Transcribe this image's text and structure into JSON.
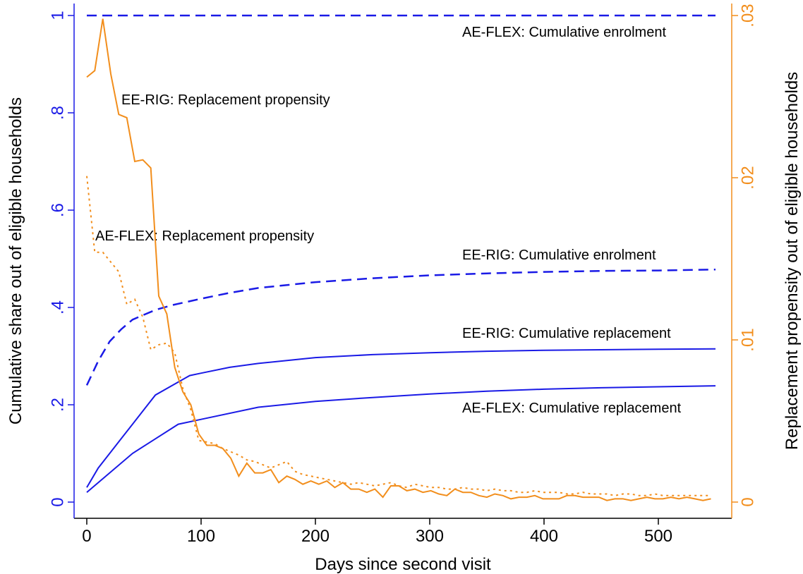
{
  "chart_data": {
    "type": "line",
    "xlabel": "Days since second visit",
    "ylabel": "Cumulative share out of eligible households",
    "y2label": "Replacement propensity out of eligible households",
    "xlim": [
      -11.1,
      564.2
    ],
    "ylim": [
      -0.0333,
      1.0246
    ],
    "y2lim": [
      -0.001,
      0.03074
    ],
    "xticks": [
      0,
      100,
      200,
      300,
      400,
      500
    ],
    "yticks": [
      0,
      {
        "value": 0.2,
        "label": ".2"
      },
      {
        "value": 0.4,
        "label": ".4"
      },
      {
        "value": 0.6,
        "label": ".6"
      },
      {
        "value": 0.8,
        "label": ".8"
      },
      1
    ],
    "y2ticks": [
      0,
      {
        "value": 0.01,
        "label": ".01"
      },
      {
        "value": 0.02,
        "label": ".02"
      },
      {
        "value": 0.03,
        "label": ".03"
      }
    ],
    "yaxis_color": "#1a1ae6",
    "y2axis_color": "#f28e1c",
    "annotations": [
      "AE-FLEX: Cumulative enrolment",
      "EE-RIG: Replacement propensity",
      "AE-FLEX: Replacement propensity",
      "EE-RIG: Cumulative enrolment",
      "EE-RIG: Cumulative replacement",
      "AE-FLEX: Cumulative replacement"
    ],
    "series": [
      {
        "color": "#1a1ae6",
        "style": "dash",
        "x": [
          0,
          550
        ],
        "values": [
          1,
          1
        ]
      },
      {
        "color": "#1a1ae6",
        "style": "dash",
        "x": [
          0,
          10,
          20,
          30,
          40,
          50,
          60,
          75,
          100,
          125,
          150,
          200,
          250,
          300,
          350,
          400,
          450,
          500,
          550
        ],
        "values": [
          0.24,
          0.29,
          0.33,
          0.355,
          0.375,
          0.385,
          0.395,
          0.405,
          0.418,
          0.43,
          0.44,
          0.452,
          0.46,
          0.466,
          0.47,
          0.473,
          0.475,
          0.476,
          0.478
        ]
      },
      {
        "color": "#1a1ae6",
        "style": "solid",
        "x": [
          0,
          10,
          20,
          30,
          40,
          50,
          60,
          75,
          90,
          100,
          125,
          150,
          200,
          250,
          300,
          350,
          400,
          450,
          500,
          550
        ],
        "values": [
          0.03,
          0.07,
          0.1,
          0.13,
          0.16,
          0.19,
          0.22,
          0.24,
          0.26,
          0.265,
          0.277,
          0.285,
          0.297,
          0.303,
          0.307,
          0.31,
          0.312,
          0.313,
          0.314,
          0.315
        ]
      },
      {
        "color": "#1a1ae6",
        "style": "solid",
        "x": [
          0,
          20,
          40,
          60,
          80,
          100,
          150,
          200,
          250,
          300,
          350,
          400,
          450,
          500,
          550
        ],
        "values": [
          0.02,
          0.06,
          0.1,
          0.13,
          0.16,
          0.17,
          0.195,
          0.207,
          0.215,
          0.222,
          0.228,
          0.232,
          0.235,
          0.237,
          0.239
        ]
      },
      {
        "color": "#f28e1c",
        "style": "solid",
        "axis": "y2",
        "x": [
          0,
          7,
          14,
          21,
          28,
          35,
          42,
          49,
          56,
          63,
          70,
          77,
          84,
          91,
          98,
          105,
          112,
          119,
          126,
          133,
          140,
          147,
          154,
          161,
          168,
          175,
          182,
          189,
          196,
          203,
          210,
          217,
          224,
          231,
          238,
          245,
          252,
          259,
          266,
          273,
          280,
          287,
          294,
          301,
          308,
          315,
          322,
          329,
          336,
          343,
          350,
          357,
          364,
          371,
          378,
          385,
          392,
          399,
          406,
          413,
          420,
          427,
          434,
          441,
          448,
          455,
          462,
          469,
          476,
          483,
          490,
          497,
          504,
          511,
          518,
          525,
          532,
          539,
          546
        ],
        "values": [
          0.0262,
          0.0266,
          0.0298,
          0.0264,
          0.0239,
          0.0237,
          0.021,
          0.0211,
          0.0206,
          0.0127,
          0.0116,
          0.0083,
          0.0068,
          0.006,
          0.0042,
          0.0035,
          0.0035,
          0.0033,
          0.0027,
          0.0016,
          0.0024,
          0.0018,
          0.0018,
          0.002,
          0.0012,
          0.0016,
          0.0014,
          0.0011,
          0.0013,
          0.0011,
          0.0013,
          0.0009,
          0.0012,
          0.0008,
          0.0008,
          0.0006,
          0.0008,
          0.0003,
          0.001,
          0.001,
          0.0007,
          0.0008,
          0.0006,
          0.0007,
          0.0005,
          0.0004,
          0.0008,
          0.0006,
          0.0006,
          0.0004,
          0.0003,
          0.0005,
          0.0004,
          0.0002,
          0.0003,
          0.0003,
          0.0004,
          0.0002,
          0.0002,
          0.0002,
          0.0004,
          0.0004,
          0.0003,
          0.0003,
          0.0003,
          0.0001,
          0.0002,
          0.0002,
          0.0001,
          0.0002,
          0.0003,
          0.0002,
          0.0002,
          0.0003,
          0.0002,
          0.0003,
          0.0002,
          0.0001,
          0.0002
        ]
      },
      {
        "color": "#f28e1c",
        "style": "dot",
        "axis": "y2",
        "x": [
          0,
          7,
          14,
          21,
          28,
          35,
          42,
          49,
          56,
          63,
          70,
          77,
          84,
          91,
          98,
          105,
          112,
          119,
          126,
          133,
          140,
          147,
          154,
          161,
          168,
          175,
          182,
          189,
          196,
          203,
          210,
          217,
          224,
          231,
          238,
          245,
          252,
          259,
          266,
          273,
          280,
          287,
          294,
          301,
          308,
          315,
          322,
          329,
          336,
          343,
          350,
          357,
          364,
          371,
          378,
          385,
          392,
          399,
          406,
          413,
          420,
          427,
          434,
          441,
          448,
          455,
          462,
          469,
          476,
          483,
          490,
          497,
          504,
          511,
          518,
          525,
          532,
          539,
          546
        ],
        "values": [
          0.0201,
          0.0154,
          0.0154,
          0.0148,
          0.0142,
          0.0122,
          0.0125,
          0.0114,
          0.0094,
          0.0097,
          0.0098,
          0.0092,
          0.007,
          0.0057,
          0.0038,
          0.0037,
          0.0036,
          0.0033,
          0.0031,
          0.0029,
          0.0026,
          0.0025,
          0.0023,
          0.0021,
          0.0023,
          0.0025,
          0.0019,
          0.0017,
          0.0016,
          0.0015,
          0.0014,
          0.0013,
          0.0012,
          0.0011,
          0.0012,
          0.0011,
          0.001,
          0.0011,
          0.0012,
          0.001,
          0.0009,
          0.0011,
          0.001,
          0.0009,
          0.0009,
          0.0008,
          0.0008,
          0.0009,
          0.0008,
          0.0008,
          0.0007,
          0.0008,
          0.0007,
          0.0007,
          0.0006,
          0.0006,
          0.0007,
          0.0006,
          0.0006,
          0.0006,
          0.0005,
          0.0005,
          0.0006,
          0.0005,
          0.0005,
          0.0005,
          0.0004,
          0.0005,
          0.0005,
          0.0004,
          0.0004,
          0.0005,
          0.0004,
          0.0004,
          0.0004,
          0.0004,
          0.0004,
          0.0004,
          0.0004
        ]
      }
    ]
  }
}
